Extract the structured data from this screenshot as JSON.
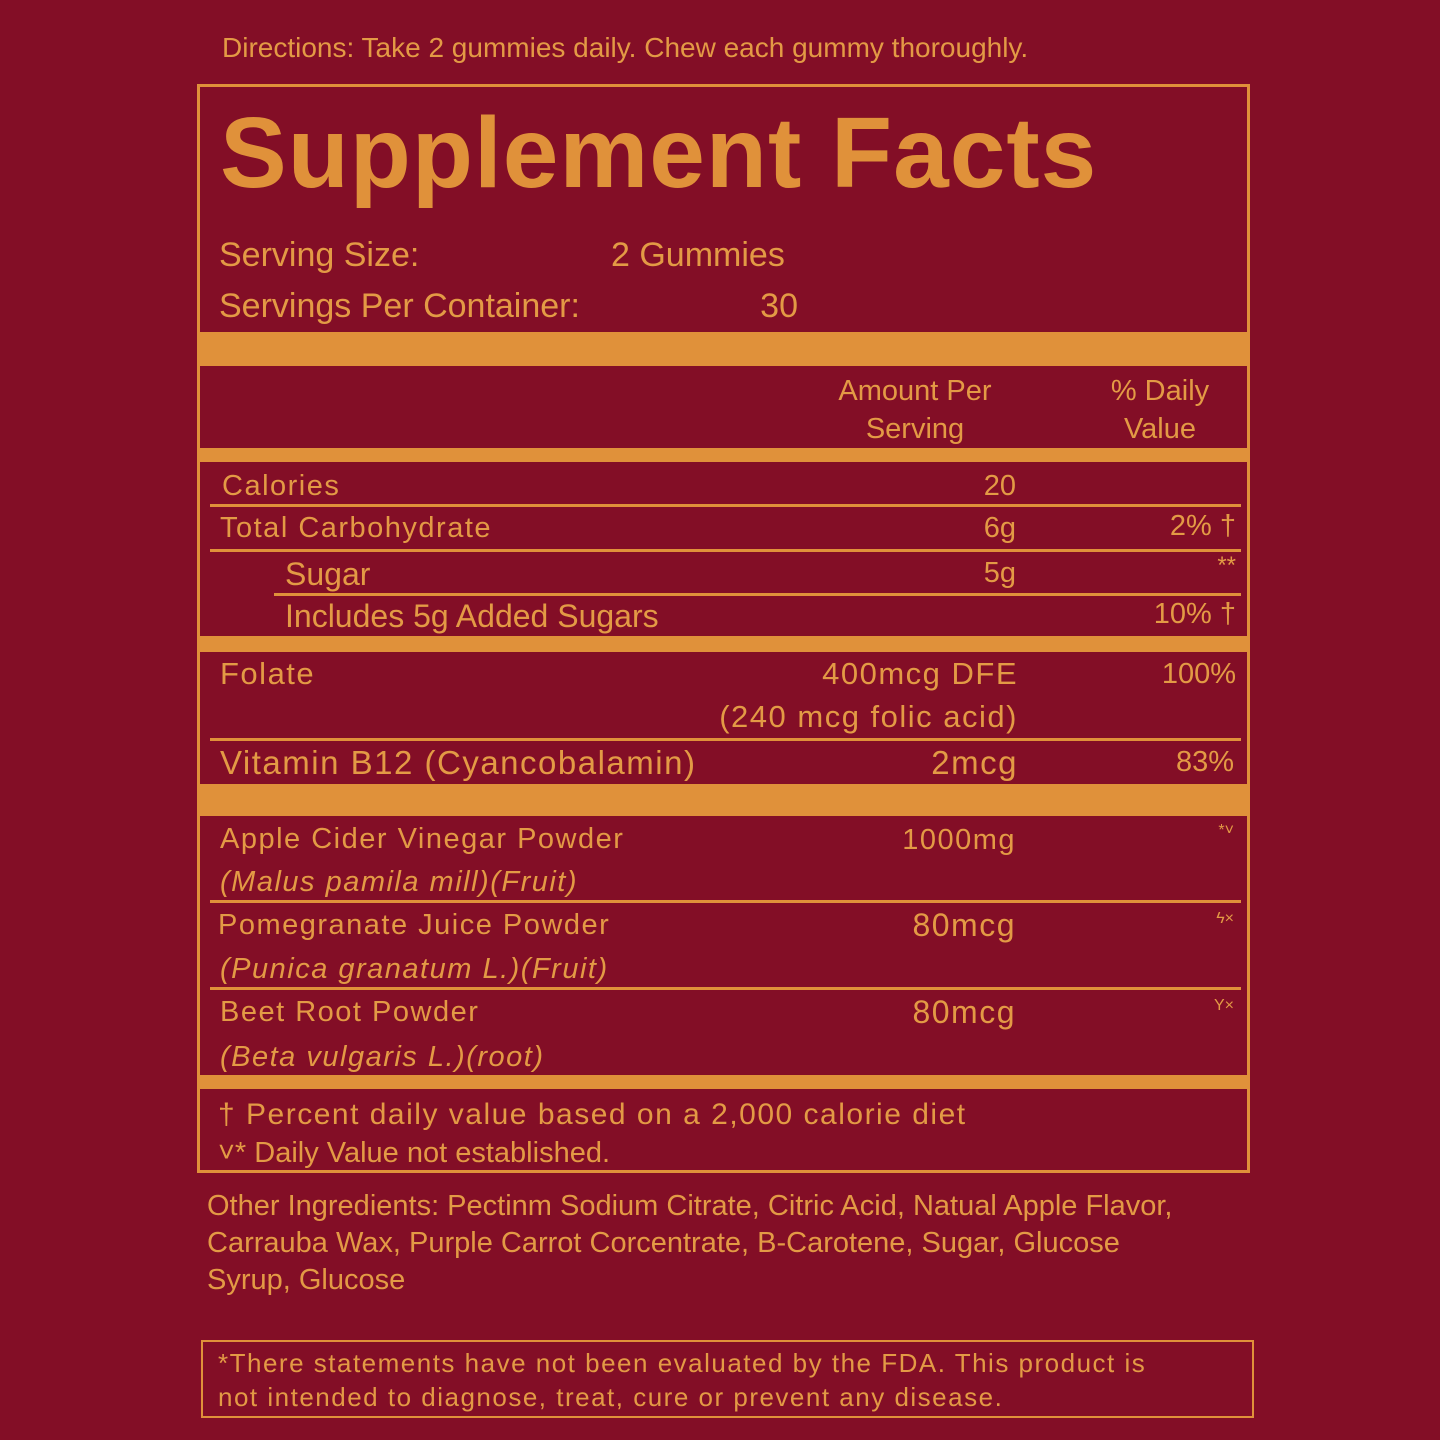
{
  "directions": "Directions: Take 2 gummies daily. Chew each gummy thoroughly.",
  "title": "Supplement Facts",
  "serving": {
    "size_label": "Serving Size:",
    "size_value": "2 Gummies",
    "per_container_label": "Servings Per Container:",
    "per_container_value": "30"
  },
  "headers": {
    "amount_line1": "Amount Per",
    "amount_line2": "Serving",
    "dv_line1": "% Daily",
    "dv_line2": "Value"
  },
  "rows": [
    {
      "name": "Calories",
      "amount": "20",
      "dv": ""
    },
    {
      "name": "Total Carbohydrate",
      "amount": "6g",
      "dv": "2% †"
    },
    {
      "name": "Sugar",
      "amount": "5g",
      "dv": "**"
    },
    {
      "name": "Includes 5g Added Sugars",
      "amount": "",
      "dv": "10% †"
    },
    {
      "name": "Folate",
      "amount": "400mcg DFE",
      "amount_sub": "(240 mcg folic acid)",
      "dv": "100%"
    },
    {
      "name": "Vitamin B12 (Cyancobalamin)",
      "amount": "2mcg",
      "dv": "83%"
    },
    {
      "name": "Apple Cider Vinegar Powder",
      "sub": "(Malus pamila mill)(Fruit)",
      "amount": "1000mg",
      "dv": "*˅"
    },
    {
      "name": "Pomegranate Juice Powder",
      "sub": "(Punica granatum L.)(Fruit)",
      "amount": "80mcg",
      "dv": "ϟ×"
    },
    {
      "name": "Beet Root Powder",
      "sub": "(Beta vulgaris L.)(root)",
      "amount": "80mcg",
      "dv": "Y×"
    }
  ],
  "footnotes": {
    "dagger": "† Percent daily value based on a 2,000 calorie diet",
    "not_established": "˅* Daily Value not established."
  },
  "other_ingredients": [
    "Other Ingredients: Pectinm Sodium Citrate, Citric Acid, Natual Apple Flavor,",
    "Carrauba  Wax, Purple Carrot  Corcentrate, B-Carotene, Sugar, Glucose",
    "Syrup, Glucose"
  ],
  "disclaimer": [
    "*There statements have not been evaluated by the FDA. This product is",
    "not intended to diagnose, treat, cure or prevent any disease."
  ],
  "colors": {
    "background": "#830e26",
    "accent": "#e0913a"
  }
}
